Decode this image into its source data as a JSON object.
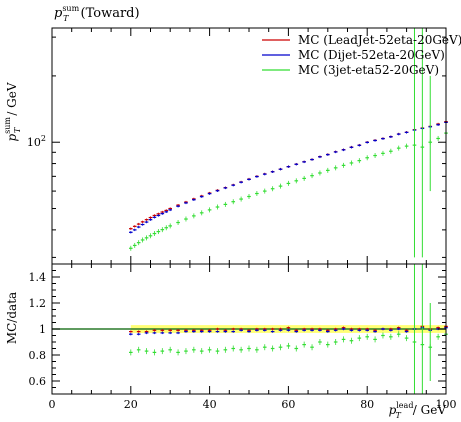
{
  "chart_data": [
    {
      "type": "scatter",
      "title": "(Toward)",
      "title_symbol": "p",
      "title_sub": "T",
      "title_sup": "sum",
      "ylabel": "/ GeV",
      "ylabel_symbol": "p",
      "ylabel_sub": "T",
      "ylabel_sup": "sum",
      "y_scale": "log",
      "xlim": [
        0,
        100
      ],
      "ylim": [
        28,
        330
      ],
      "y_tick_labels": [
        {
          "value": 100,
          "base": "10",
          "exp": "2"
        }
      ],
      "grid": false,
      "legend_position": "top-right",
      "series": [
        {
          "name": "MC (LeadJet-52eta-20GeV)",
          "color": "#cc0000",
          "x": [
            20,
            21,
            22,
            23,
            24,
            25,
            26,
            27,
            28,
            29,
            30,
            32,
            34,
            36,
            38,
            40,
            42,
            44,
            46,
            48,
            50,
            52,
            54,
            56,
            58,
            60,
            62,
            64,
            66,
            68,
            70,
            72,
            74,
            76,
            78,
            80,
            82,
            84,
            86,
            88,
            90,
            92,
            94,
            96,
            98,
            100
          ],
          "y": [
            40.5,
            41.5,
            42.5,
            43.5,
            44.5,
            45.5,
            46.5,
            47.3,
            48.2,
            49,
            50,
            51.8,
            53.5,
            55.3,
            57,
            58.8,
            60.5,
            62.2,
            64,
            66,
            68,
            70,
            71.8,
            73.5,
            75.5,
            77.5,
            79.5,
            81.5,
            83.5,
            86,
            88,
            90.5,
            92.5,
            95,
            97,
            100,
            102,
            104,
            106,
            109,
            111,
            114,
            116,
            118,
            121,
            124
          ]
        },
        {
          "name": "MC (Dijet-52eta-20GeV)",
          "color": "#0000cc",
          "x": [
            20,
            21,
            22,
            23,
            24,
            25,
            26,
            27,
            28,
            29,
            30,
            32,
            34,
            36,
            38,
            40,
            42,
            44,
            46,
            48,
            50,
            52,
            54,
            56,
            58,
            60,
            62,
            64,
            66,
            68,
            70,
            72,
            74,
            76,
            78,
            80,
            82,
            84,
            86,
            88,
            90,
            92,
            94,
            96,
            98,
            100
          ],
          "y": [
            39,
            40,
            41.2,
            42.3,
            43.4,
            44.5,
            45.6,
            46.5,
            47.4,
            48.3,
            49.3,
            51.2,
            53,
            54.8,
            56.6,
            58.4,
            60.2,
            62,
            63.8,
            65.8,
            67.8,
            69.8,
            71.6,
            73.4,
            75.4,
            77.4,
            79.4,
            81.4,
            83.4,
            85.8,
            87.8,
            90.3,
            92.3,
            94.8,
            96.8,
            99.8,
            101.8,
            103.8,
            105.8,
            108.8,
            110.8,
            113.5,
            115.5,
            117.5,
            120,
            123
          ]
        },
        {
          "name": "MC (3jet-eta52-20GeV)",
          "color": "#33dd33",
          "x": [
            20,
            21,
            22,
            23,
            24,
            25,
            26,
            27,
            28,
            29,
            30,
            32,
            34,
            36,
            38,
            40,
            42,
            44,
            46,
            48,
            50,
            52,
            54,
            56,
            58,
            60,
            62,
            64,
            66,
            68,
            70,
            72,
            74,
            76,
            78,
            80,
            82,
            84,
            86,
            88,
            90,
            92,
            94,
            96,
            98,
            100
          ],
          "y": [
            33,
            34,
            35,
            36,
            36.8,
            37.6,
            38.5,
            39.3,
            40.1,
            40.9,
            41.7,
            43.2,
            44.8,
            46.3,
            47.8,
            49.3,
            50.8,
            52.2,
            53.7,
            55.2,
            56.7,
            58.5,
            60,
            61.5,
            63.2,
            65,
            66.8,
            68.5,
            70.5,
            72.5,
            74.5,
            76.5,
            78.5,
            80.5,
            82.5,
            85,
            87,
            89,
            91,
            94,
            96,
            97,
            95,
            100,
            104,
            110
          ]
        }
      ]
    },
    {
      "type": "scatter",
      "title": "",
      "xlabel": "/ GeV",
      "xlabel_symbol": "p",
      "xlabel_sub": "T",
      "xlabel_sup": "lead",
      "ylabel": "MC/data",
      "xlim": [
        0,
        100
      ],
      "ylim": [
        0.5,
        1.5
      ],
      "x_ticks": [
        0,
        20,
        40,
        60,
        80,
        100
      ],
      "y_ticks": [
        0.6,
        0.8,
        1,
        1.2,
        1.4
      ],
      "grid": false,
      "reference_line": 1,
      "reference_band": [
        0.97,
        1.03
      ],
      "series": [
        {
          "name": "MC (LeadJet-52eta-20GeV)",
          "color": "#cc0000",
          "x": [
            20,
            22,
            24,
            26,
            28,
            30,
            32,
            34,
            36,
            38,
            40,
            42,
            44,
            46,
            48,
            50,
            52,
            54,
            56,
            58,
            60,
            62,
            64,
            66,
            68,
            70,
            72,
            74,
            76,
            78,
            80,
            82,
            84,
            86,
            88,
            90,
            92,
            94,
            96,
            98,
            100
          ],
          "y": [
            0.98,
            0.98,
            0.98,
            0.99,
            0.99,
            0.99,
            0.99,
            0.99,
            0.99,
            0.99,
            0.99,
            1.0,
            0.99,
            1.0,
            1.0,
            0.99,
            1.0,
            1.0,
            1.0,
            1.0,
            1.01,
            0.99,
            1.0,
            1.0,
            1.0,
            0.99,
            1.0,
            1.01,
            1.0,
            1.0,
            1.0,
            0.99,
            1.0,
            1.0,
            1.01,
            0.99,
            1.0,
            1.02,
            1.0,
            1.01,
            1.02
          ]
        },
        {
          "name": "MC (Dijet-52eta-20GeV)",
          "color": "#0000cc",
          "x": [
            20,
            22,
            24,
            26,
            28,
            30,
            32,
            34,
            36,
            38,
            40,
            42,
            44,
            46,
            48,
            50,
            52,
            54,
            56,
            58,
            60,
            62,
            64,
            66,
            68,
            70,
            72,
            74,
            76,
            78,
            80,
            82,
            84,
            86,
            88,
            90,
            92,
            94,
            96,
            98,
            100
          ],
          "y": [
            0.96,
            0.96,
            0.97,
            0.97,
            0.97,
            0.97,
            0.97,
            0.98,
            0.98,
            0.98,
            0.98,
            0.98,
            0.98,
            0.98,
            0.99,
            0.98,
            0.99,
            0.99,
            0.98,
            0.99,
            0.99,
            0.98,
            0.99,
            0.99,
            0.99,
            0.98,
            0.99,
            1.0,
            0.99,
            0.99,
            0.99,
            0.98,
            1.0,
            0.99,
            1.0,
            0.98,
            1.0,
            1.01,
            0.99,
            1.0,
            1.01
          ]
        },
        {
          "name": "MC (3jet-eta52-20GeV)",
          "color": "#33dd33",
          "x": [
            20,
            22,
            24,
            26,
            28,
            30,
            32,
            34,
            36,
            38,
            40,
            42,
            44,
            46,
            48,
            50,
            52,
            54,
            56,
            58,
            60,
            62,
            64,
            66,
            68,
            70,
            72,
            74,
            76,
            78,
            80,
            82,
            84,
            86,
            88,
            90,
            92,
            94,
            96,
            98,
            100
          ],
          "y": [
            0.82,
            0.84,
            0.83,
            0.82,
            0.83,
            0.84,
            0.82,
            0.83,
            0.84,
            0.83,
            0.84,
            0.83,
            0.84,
            0.85,
            0.84,
            0.85,
            0.84,
            0.86,
            0.85,
            0.86,
            0.87,
            0.85,
            0.88,
            0.86,
            0.9,
            0.88,
            0.9,
            0.92,
            0.91,
            0.93,
            0.94,
            0.92,
            0.95,
            0.94,
            0.96,
            0.93,
            0.9,
            0.88,
            0.86,
            0.94,
            0.96
          ]
        }
      ]
    }
  ]
}
